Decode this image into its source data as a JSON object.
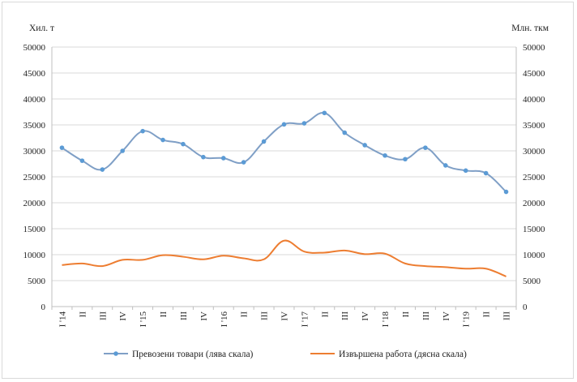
{
  "chart_data": {
    "type": "line",
    "left_unit": "Хил. т",
    "right_unit": "Млн. ткм",
    "ylim_left": [
      0,
      50000
    ],
    "ylim_right": [
      0,
      50000
    ],
    "y_ticks": [
      "0",
      "5000",
      "10000",
      "15000",
      "20000",
      "25000",
      "30000",
      "35000",
      "40000",
      "45000",
      "50000"
    ],
    "categories": [
      "I '14",
      "II",
      "III",
      "IV",
      "I '15",
      "II",
      "III",
      "IV",
      "I '16",
      "II",
      "III",
      "IV",
      "I '17",
      "II",
      "III",
      "IV",
      "I '18",
      "II",
      "III",
      "IV",
      "I '19",
      "II",
      "III"
    ],
    "series": [
      {
        "name": "Превозени товари (лява скала)",
        "axis": "left",
        "color": "#7f9fc6",
        "marker_color": "#5b9bd5",
        "values": [
          30600,
          28100,
          26400,
          30000,
          33800,
          32100,
          31300,
          28800,
          28600,
          27800,
          31800,
          35100,
          35300,
          37300,
          33500,
          31100,
          29100,
          28400,
          30600,
          27200,
          26200,
          25700,
          22100
        ]
      },
      {
        "name": "Извършена работа (дясна скала)",
        "axis": "right",
        "color": "#ed7d31",
        "values": [
          8000,
          8300,
          7800,
          9000,
          9000,
          9900,
          9600,
          9100,
          9800,
          9300,
          9100,
          12700,
          10600,
          10400,
          10800,
          10100,
          10200,
          8300,
          7800,
          7600,
          7300,
          7300,
          5800
        ]
      }
    ],
    "legend": [
      {
        "label": "Превозени товари (лява скала)"
      },
      {
        "label": "Извършена  работа (дясна скала)"
      }
    ]
  }
}
